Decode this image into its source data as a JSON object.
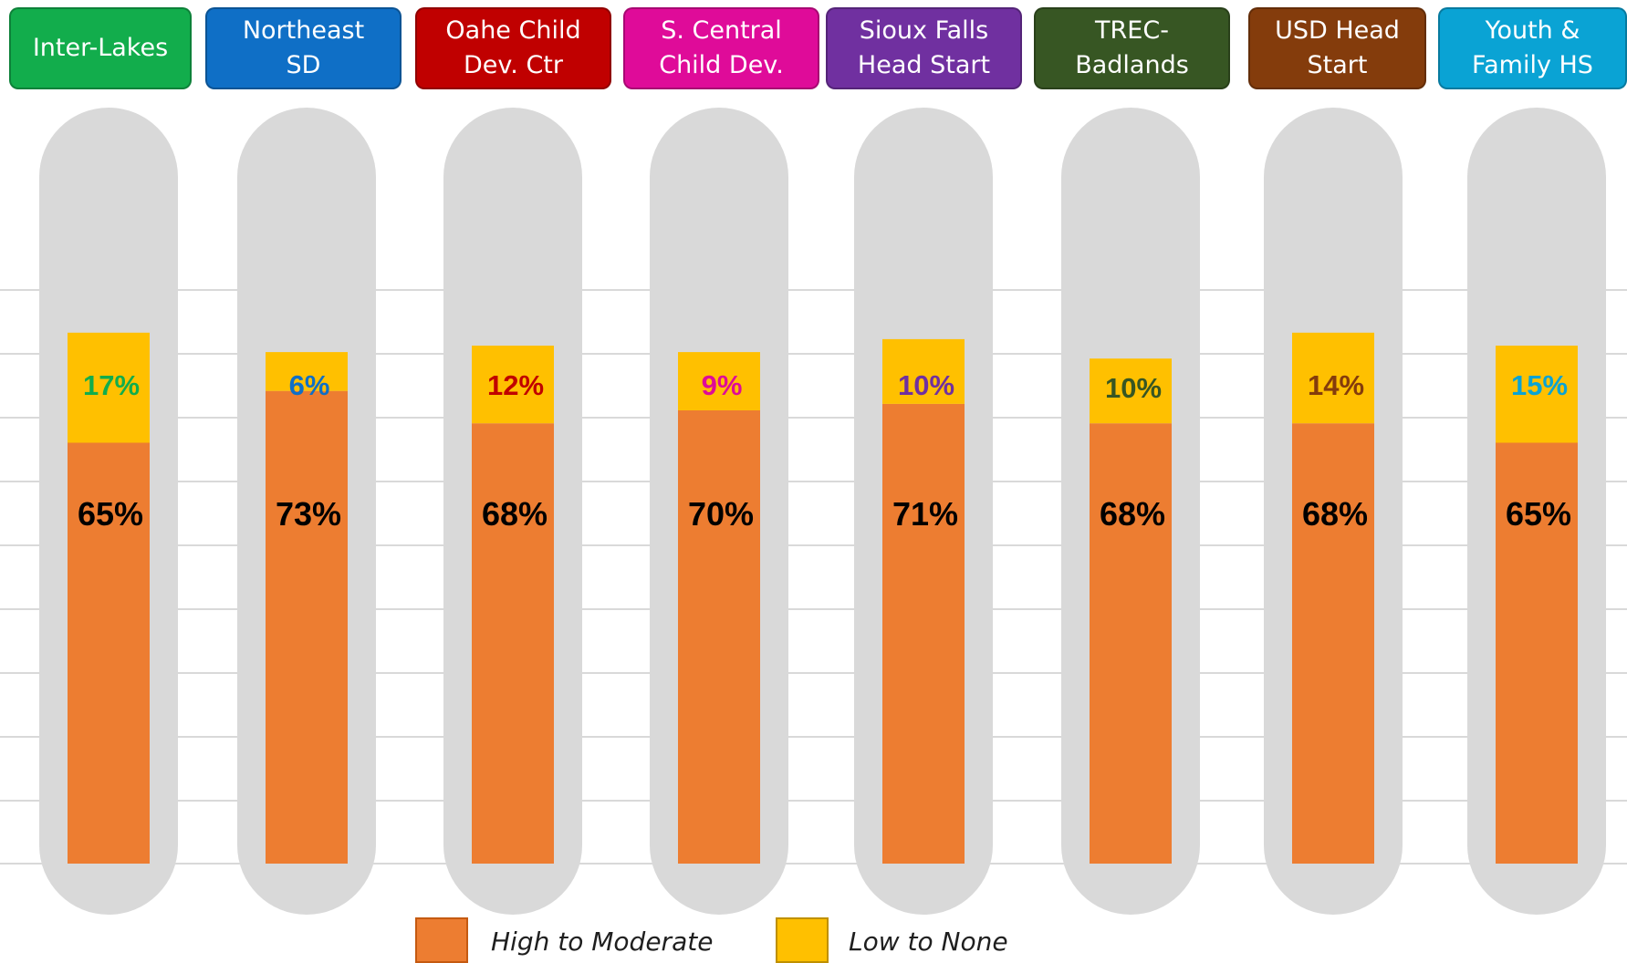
{
  "chart_data": {
    "type": "bar",
    "stacked": true,
    "categories": [
      "Inter-Lakes",
      "Northeast\nSD",
      "Oahe Child\nDev. Ctr",
      "S. Central\nChild Dev.",
      "Sioux Falls\nHead Start",
      "TREC-\nBadlands",
      "USD Head\nStart",
      "Youth &\nFamily HS"
    ],
    "category_colors": [
      "#12ad4c",
      "#0f6fc6",
      "#c00000",
      "#df0b99",
      "#7030a0",
      "#375623",
      "#843c0c",
      "#0aa3d4"
    ],
    "series": [
      {
        "name": "High to Moderate",
        "color": "#ed7d31",
        "values": [
          65,
          73,
          68,
          70,
          71,
          68,
          68,
          65
        ],
        "labels": [
          "65%",
          "73%",
          "68%",
          "70%",
          "71%",
          "68%",
          "68%",
          "65%"
        ]
      },
      {
        "name": "Low to None",
        "color": "#ffc000",
        "values": [
          17,
          6,
          12,
          9,
          10,
          10,
          14,
          15
        ],
        "labels": [
          "17%",
          "6%",
          "12%",
          "9%",
          "10%",
          "10%",
          "14%",
          "15%"
        ]
      }
    ],
    "ylim": [
      0,
      130
    ],
    "grid": true,
    "legend_position": "bottom-center",
    "background_track_color": "#d9d9d9"
  }
}
